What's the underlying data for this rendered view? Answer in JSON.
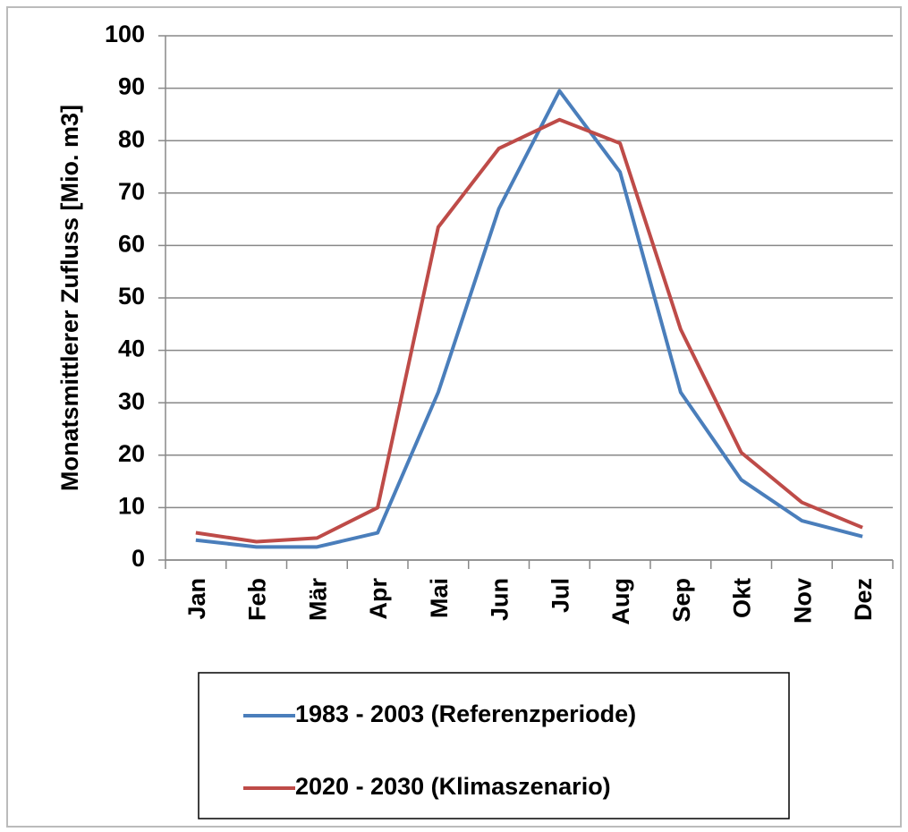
{
  "chart_data": {
    "type": "line",
    "y_label": "Monatsmittlerer Zufluss [Mio. m3]",
    "categories": [
      "Jan",
      "Feb",
      "Mär",
      "Apr",
      "Mai",
      "Jun",
      "Jul",
      "Aug",
      "Sep",
      "Okt",
      "Nov",
      "Dez"
    ],
    "series": [
      {
        "name": "1983 - 2003 (Referenzperiode)",
        "color": "#4a7ebb",
        "values": [
          3.8,
          2.5,
          2.5,
          5.2,
          32,
          67,
          89.5,
          74,
          32,
          15.3,
          7.5,
          4.5
        ]
      },
      {
        "name": "2020 - 2030 (Klimaszenario)",
        "color": "#be4b48",
        "values": [
          5.2,
          3.5,
          4.2,
          10,
          63.5,
          78.5,
          84,
          79.5,
          44,
          20.5,
          11,
          6.2
        ]
      }
    ],
    "ylim": [
      0,
      100
    ],
    "yticks": [
      0,
      10,
      20,
      30,
      40,
      50,
      60,
      70,
      80,
      90,
      100
    ],
    "grid": true
  }
}
